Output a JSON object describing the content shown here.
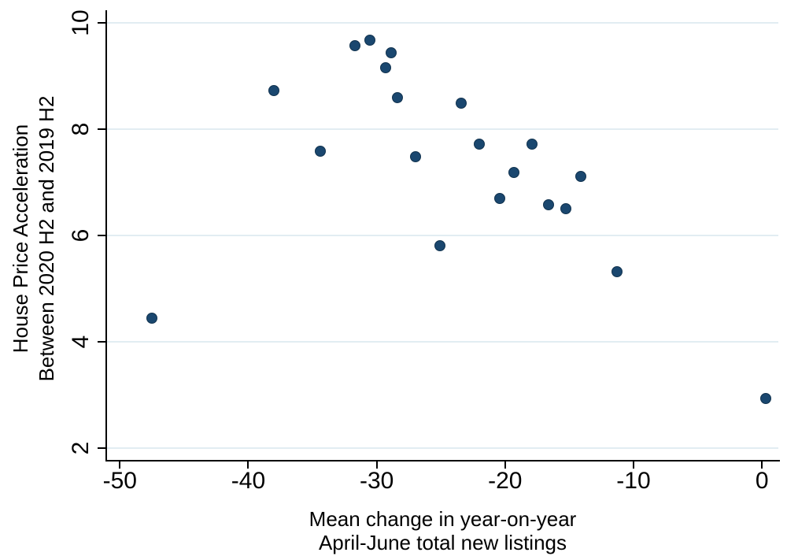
{
  "figure": {
    "background_color": "#ffffff",
    "text_color": "#000000"
  },
  "chart_data": {
    "type": "scatter",
    "title": "",
    "xlabel": "Mean change in year-on-year April-June total new listings",
    "xlabel_lines": [
      "Mean change in year-on-year",
      "April-June total new listings"
    ],
    "ylabel": "House Price Acceleration Between 2020 H2 and 2019 H2",
    "ylabel_lines": [
      "House Price Acceleration",
      "Between 2020 H2 and 2019 H2"
    ],
    "xlim": [
      -51.0,
      1.4
    ],
    "ylim": [
      1.78,
      10.24
    ],
    "xticks": [
      "-50",
      "-40",
      "-30",
      "-20",
      "-10",
      "0"
    ],
    "xtick_values": [
      -50,
      -40,
      -30,
      -20,
      -10,
      0
    ],
    "yticks": [
      "2",
      "4",
      "6",
      "8",
      "10"
    ],
    "ytick_values": [
      2,
      4,
      6,
      8,
      10
    ],
    "grid": "horizontal-only",
    "legend": "none",
    "marker_color": "#1a476f",
    "marker_edge_color": "#12334f",
    "gridline_color": "#e2edf2",
    "axis_color": "#000000",
    "points": [
      [
        -47.5,
        4.44
      ],
      [
        -38.0,
        8.73
      ],
      [
        -34.4,
        7.59
      ],
      [
        -31.7,
        9.57
      ],
      [
        -30.5,
        9.67
      ],
      [
        -29.3,
        9.16
      ],
      [
        -28.9,
        9.44
      ],
      [
        -28.4,
        8.59
      ],
      [
        -27.0,
        7.49
      ],
      [
        -25.1,
        5.81
      ],
      [
        -23.4,
        8.49
      ],
      [
        -22.0,
        7.72
      ],
      [
        -20.4,
        6.7
      ],
      [
        -19.3,
        7.19
      ],
      [
        -17.9,
        7.72
      ],
      [
        -16.6,
        6.58
      ],
      [
        -15.3,
        6.51
      ],
      [
        -14.1,
        7.11
      ],
      [
        -11.3,
        5.32
      ],
      [
        0.3,
        2.93
      ]
    ]
  }
}
